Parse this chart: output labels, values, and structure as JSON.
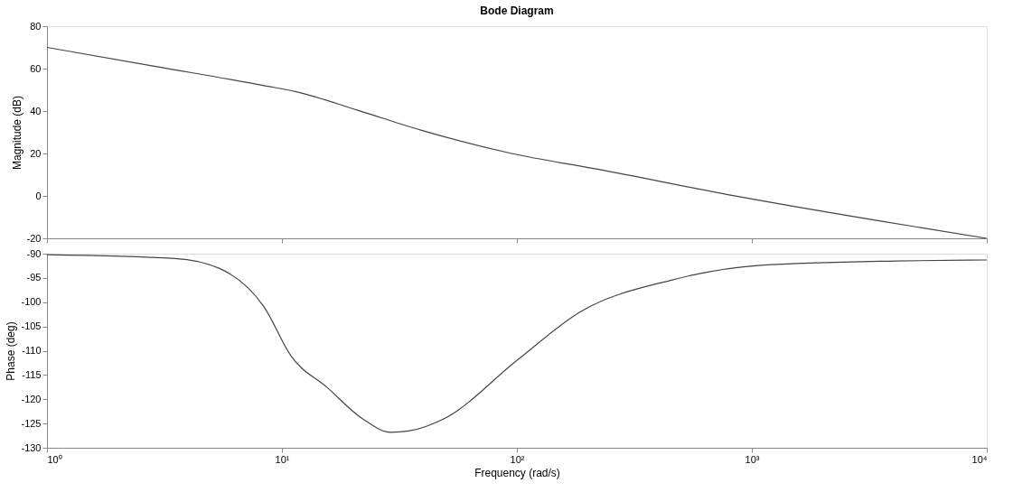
{
  "chart_data": [
    {
      "type": "line",
      "title": "Bode Diagram",
      "ylabel": "Magnitude (dB)",
      "log": "x",
      "grid": false,
      "tick_labels": "y",
      "xlim": [
        1,
        10000
      ],
      "xticks": [
        {
          "value": 1,
          "label": null
        },
        {
          "value": 10,
          "label": null
        },
        {
          "value": 100,
          "label": null
        },
        {
          "value": 1000,
          "label": null
        },
        {
          "value": 10000,
          "label": null
        }
      ],
      "ylim": [
        -20,
        80
      ],
      "yticks": [
        -20,
        0,
        20,
        40,
        60,
        80
      ],
      "series": [
        {
          "color": "#444444",
          "x": [
            1,
            2.9,
            8.4,
            11.6,
            21,
            39,
            95,
            218,
            884,
            3580,
            10000
          ],
          "values": [
            70,
            61,
            52,
            49,
            40.4,
            31,
            20,
            12.7,
            -0.4,
            -12,
            -20
          ]
        }
      ]
    },
    {
      "type": "line",
      "xlabel": "Frequency (rad/s)",
      "ylabel": "Phase (deg)",
      "log": "x",
      "grid": false,
      "xlim": [
        1,
        10000
      ],
      "xticks": [
        {
          "value": 1,
          "label": "10⁰"
        },
        {
          "value": 10,
          "label": "10¹"
        },
        {
          "value": 100,
          "label": "10²"
        },
        {
          "value": 1000,
          "label": "10³"
        },
        {
          "value": 10000,
          "label": "10⁴"
        }
      ],
      "ylim": [
        -130,
        -90
      ],
      "yticks": [
        -130,
        -125,
        -120,
        -115,
        -110,
        -105,
        -100,
        -95,
        -90
      ],
      "series": [
        {
          "color": "#444444",
          "x": [
            1,
            3.5,
            5.4,
            8.4,
            10.9,
            15.6,
            22,
            29,
            35,
            49,
            100,
            186,
            450,
            1090,
            4100,
            10000
          ],
          "values": [
            -90.2,
            -91,
            -93,
            -101,
            -111,
            -117.6,
            -124,
            -126.8,
            -126.5,
            -124,
            -112,
            -102,
            -95.5,
            -92.4,
            -91.5,
            -91.3
          ]
        }
      ]
    }
  ]
}
